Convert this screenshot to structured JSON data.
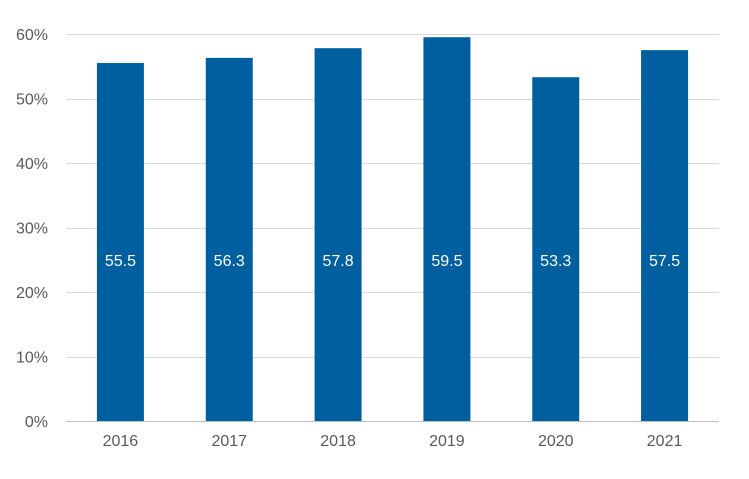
{
  "chart_data": {
    "type": "bar",
    "categories": [
      "2016",
      "2017",
      "2018",
      "2019",
      "2020",
      "2021"
    ],
    "values": [
      55.5,
      56.3,
      57.8,
      59.5,
      53.3,
      57.5
    ],
    "data_labels": [
      "55.5",
      "56.3",
      "57.8",
      "59.5",
      "53.3",
      "57.5"
    ],
    "title": "",
    "xlabel": "",
    "ylabel": "",
    "ylim": [
      0,
      60
    ],
    "yticks": [
      0,
      10,
      20,
      30,
      40,
      50,
      60
    ],
    "ytick_labels": [
      "0%",
      "10%",
      "20%",
      "30%",
      "40%",
      "50%",
      "60%"
    ],
    "grid": true,
    "legend": "none",
    "colors": {
      "bar": "#00609F",
      "grid": "#D9D9D9",
      "axis": "#BFBFBF",
      "tick_text": "#595959",
      "data_label_text": "#FFFFFF"
    }
  }
}
